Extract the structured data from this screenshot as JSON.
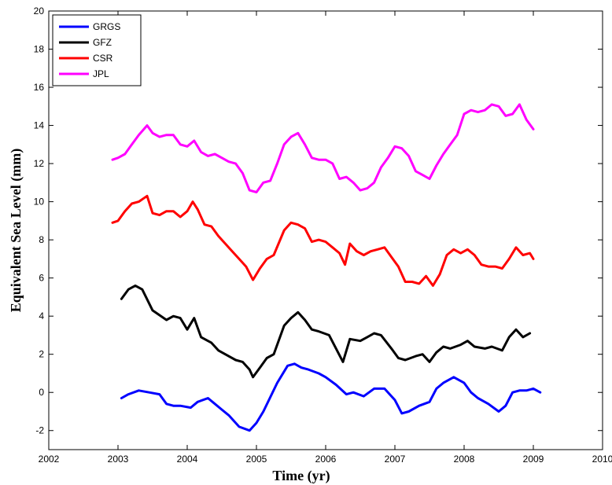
{
  "chart_data": {
    "type": "line",
    "title": "",
    "xlabel": "Time (yr)",
    "ylabel": "Equivalent Sea Level (mm)",
    "xlim": [
      2002,
      2010
    ],
    "ylim": [
      -3,
      20
    ],
    "xticks": [
      2002,
      2003,
      2004,
      2005,
      2006,
      2007,
      2008,
      2009,
      2010
    ],
    "yticks": [
      -2,
      0,
      2,
      4,
      6,
      8,
      10,
      12,
      14,
      16,
      18,
      20
    ],
    "grid": false,
    "legend_position": "top-left",
    "series": [
      {
        "name": "GRGS",
        "color": "#0000ff",
        "x": [
          2003.05,
          2003.15,
          2003.3,
          2003.45,
          2003.6,
          2003.7,
          2003.8,
          2003.9,
          2004.05,
          2004.15,
          2004.3,
          2004.4,
          2004.5,
          2004.6,
          2004.75,
          2004.9,
          2005.0,
          2005.1,
          2005.3,
          2005.45,
          2005.55,
          2005.65,
          2005.75,
          2005.9,
          2006.0,
          2006.15,
          2006.3,
          2006.4,
          2006.55,
          2006.7,
          2006.85,
          2007.0,
          2007.1,
          2007.2,
          2007.35,
          2007.5,
          2007.6,
          2007.7,
          2007.85,
          2008.0,
          2008.1,
          2008.2,
          2008.35,
          2008.5,
          2008.6,
          2008.7,
          2008.8,
          2008.9,
          2009.0,
          2009.1
        ],
        "y": [
          -0.3,
          -0.1,
          0.1,
          0.0,
          -0.1,
          -0.6,
          -0.7,
          -0.7,
          -0.8,
          -0.5,
          -0.3,
          -0.6,
          -0.9,
          -1.2,
          -1.8,
          -2.0,
          -1.6,
          -1.0,
          0.5,
          1.4,
          1.5,
          1.3,
          1.2,
          1.0,
          0.8,
          0.4,
          -0.1,
          0.0,
          -0.2,
          0.2,
          0.2,
          -0.4,
          -1.1,
          -1.0,
          -0.7,
          -0.5,
          0.2,
          0.5,
          0.8,
          0.5,
          0.0,
          -0.3,
          -0.6,
          -1.0,
          -0.7,
          0.0,
          0.1,
          0.1,
          0.2,
          0.0
        ]
      },
      {
        "name": "GFZ",
        "color": "#000000",
        "x": [
          2003.05,
          2003.15,
          2003.25,
          2003.35,
          2003.5,
          2003.7,
          2003.8,
          2003.9,
          2004.0,
          2004.1,
          2004.2,
          2004.35,
          2004.45,
          2004.55,
          2004.7,
          2004.8,
          2004.9,
          2004.95,
          2005.05,
          2005.15,
          2005.25,
          2005.4,
          2005.5,
          2005.6,
          2005.7,
          2005.8,
          2005.9,
          2006.05,
          2006.15,
          2006.25,
          2006.35,
          2006.5,
          2006.6,
          2006.7,
          2006.8,
          2006.95,
          2007.05,
          2007.15,
          2007.3,
          2007.4,
          2007.5,
          2007.6,
          2007.7,
          2007.8,
          2007.95,
          2008.05,
          2008.15,
          2008.3,
          2008.4,
          2008.55,
          2008.65,
          2008.75,
          2008.85,
          2008.95
        ],
        "y": [
          4.9,
          5.4,
          5.6,
          5.4,
          4.3,
          3.8,
          4.0,
          3.9,
          3.3,
          3.9,
          2.9,
          2.6,
          2.2,
          2.0,
          1.7,
          1.6,
          1.2,
          0.8,
          1.3,
          1.8,
          2.0,
          3.5,
          3.9,
          4.2,
          3.8,
          3.3,
          3.2,
          3.0,
          2.3,
          1.6,
          2.8,
          2.7,
          2.9,
          3.1,
          3.0,
          2.3,
          1.8,
          1.7,
          1.9,
          2.0,
          1.6,
          2.1,
          2.4,
          2.3,
          2.5,
          2.7,
          2.4,
          2.3,
          2.4,
          2.2,
          2.9,
          3.3,
          2.9,
          3.1
        ]
      },
      {
        "name": "CSR",
        "color": "#ff0000",
        "x": [
          2002.92,
          2003.0,
          2003.1,
          2003.2,
          2003.3,
          2003.42,
          2003.5,
          2003.6,
          2003.7,
          2003.8,
          2003.9,
          2004.0,
          2004.08,
          2004.15,
          2004.25,
          2004.35,
          2004.45,
          2004.55,
          2004.65,
          2004.75,
          2004.85,
          2004.95,
          2005.05,
          2005.15,
          2005.25,
          2005.4,
          2005.5,
          2005.6,
          2005.7,
          2005.8,
          2005.9,
          2006.0,
          2006.1,
          2006.2,
          2006.28,
          2006.35,
          2006.45,
          2006.55,
          2006.65,
          2006.75,
          2006.85,
          2006.95,
          2007.05,
          2007.15,
          2007.25,
          2007.35,
          2007.45,
          2007.55,
          2007.65,
          2007.75,
          2007.85,
          2007.95,
          2008.05,
          2008.15,
          2008.25,
          2008.35,
          2008.45,
          2008.55,
          2008.65,
          2008.75,
          2008.85,
          2008.95,
          2009.0
        ],
        "y": [
          8.9,
          9.0,
          9.5,
          9.9,
          10.0,
          10.3,
          9.4,
          9.3,
          9.5,
          9.5,
          9.2,
          9.5,
          10.0,
          9.6,
          8.8,
          8.7,
          8.2,
          7.8,
          7.4,
          7.0,
          6.6,
          5.9,
          6.5,
          7.0,
          7.2,
          8.5,
          8.9,
          8.8,
          8.6,
          7.9,
          8.0,
          7.9,
          7.6,
          7.3,
          6.7,
          7.8,
          7.4,
          7.2,
          7.4,
          7.5,
          7.6,
          7.1,
          6.6,
          5.8,
          5.8,
          5.7,
          6.1,
          5.6,
          6.2,
          7.2,
          7.5,
          7.3,
          7.5,
          7.2,
          6.7,
          6.6,
          6.6,
          6.5,
          7.0,
          7.6,
          7.2,
          7.3,
          7.0
        ]
      },
      {
        "name": "JPL",
        "color": "#ff00ff",
        "x": [
          2002.92,
          2003.0,
          2003.1,
          2003.2,
          2003.3,
          2003.42,
          2003.5,
          2003.6,
          2003.7,
          2003.8,
          2003.9,
          2004.0,
          2004.1,
          2004.2,
          2004.3,
          2004.4,
          2004.5,
          2004.6,
          2004.7,
          2004.8,
          2004.9,
          2005.0,
          2005.1,
          2005.2,
          2005.3,
          2005.4,
          2005.5,
          2005.6,
          2005.7,
          2005.8,
          2005.9,
          2006.0,
          2006.1,
          2006.2,
          2006.3,
          2006.4,
          2006.5,
          2006.6,
          2006.7,
          2006.8,
          2006.9,
          2007.0,
          2007.1,
          2007.2,
          2007.3,
          2007.4,
          2007.5,
          2007.6,
          2007.7,
          2007.8,
          2007.9,
          2008.0,
          2008.1,
          2008.2,
          2008.3,
          2008.4,
          2008.5,
          2008.6,
          2008.7,
          2008.8,
          2008.9,
          2009.0
        ],
        "y": [
          12.2,
          12.3,
          12.5,
          13.0,
          13.5,
          14.0,
          13.6,
          13.4,
          13.5,
          13.5,
          13.0,
          12.9,
          13.2,
          12.6,
          12.4,
          12.5,
          12.3,
          12.1,
          12.0,
          11.5,
          10.6,
          10.5,
          11.0,
          11.1,
          12.0,
          13.0,
          13.4,
          13.6,
          13.0,
          12.3,
          12.2,
          12.2,
          12.0,
          11.2,
          11.3,
          11.0,
          10.6,
          10.7,
          11.0,
          11.8,
          12.3,
          12.9,
          12.8,
          12.4,
          11.6,
          11.4,
          11.2,
          11.9,
          12.5,
          13.0,
          13.5,
          14.6,
          14.8,
          14.7,
          14.8,
          15.1,
          15.0,
          14.5,
          14.6,
          15.1,
          14.3,
          13.8
        ]
      }
    ]
  }
}
